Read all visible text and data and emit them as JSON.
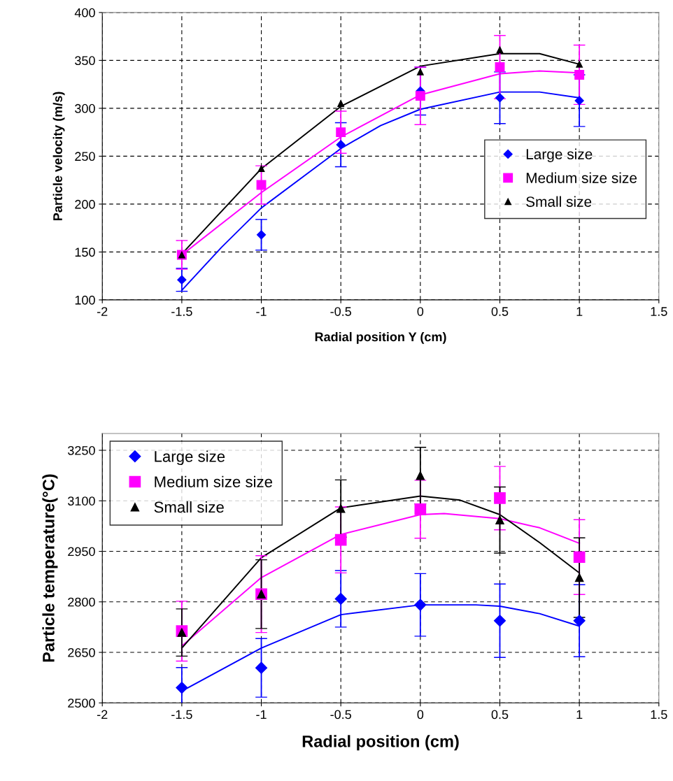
{
  "chart_data": [
    {
      "type": "scatter",
      "xlabel": "Radial position Y (cm)",
      "ylabel": "Particle velocity (m/s)",
      "xlim": [
        -2,
        1.5
      ],
      "xticks": [
        -2,
        -1.5,
        -1,
        -0.5,
        0,
        0.5,
        1,
        1.5
      ],
      "ylim": [
        100,
        400
      ],
      "yticks": [
        100,
        150,
        200,
        250,
        300,
        350,
        400
      ],
      "grid": true,
      "legend": "right",
      "x": [
        -1.5,
        -1,
        -0.5,
        0,
        0.5,
        1
      ],
      "series": [
        {
          "name": "Large size",
          "marker": "diamond",
          "color": "#0000ff",
          "values": [
            121,
            168,
            262,
            318,
            311,
            308
          ],
          "errors": [
            12,
            16,
            23,
            25,
            27,
            27
          ]
        },
        {
          "name": "Medium size size",
          "marker": "square",
          "color": "#ff00ff",
          "values": [
            147,
            220,
            275,
            313,
            343,
            335
          ],
          "errors": [
            15,
            20,
            22,
            30,
            33,
            31
          ]
        },
        {
          "name": "Small size",
          "marker": "triangle",
          "color": "#000000",
          "values": [
            147,
            237,
            305,
            338,
            361,
            346
          ]
        },
        {
          "type": "line",
          "marker": "none",
          "color": "#0000ff",
          "x": [
            -1.5,
            -1.25,
            -1,
            -0.5,
            -0.25,
            0,
            0.5,
            0.75,
            1
          ],
          "values": [
            110,
            155,
            196,
            258,
            282,
            299,
            317,
            317,
            311
          ]
        },
        {
          "type": "line",
          "marker": "none",
          "color": "#ff00ff",
          "x": [
            -1.5,
            -1,
            -0.5,
            0,
            0.5,
            0.75,
            1
          ],
          "values": [
            147,
            212,
            270,
            314,
            336,
            339,
            337
          ]
        },
        {
          "type": "line",
          "marker": "none",
          "color": "#000000",
          "x": [
            -1.5,
            -1,
            -0.5,
            0,
            0.5,
            0.75,
            1
          ],
          "values": [
            148,
            237,
            302,
            344,
            357,
            357,
            346
          ]
        }
      ]
    },
    {
      "type": "scatter",
      "xlabel": "Radial position (cm)",
      "ylabel": "Particle temperature(°C)",
      "xlim": [
        -2,
        1.5
      ],
      "xticks": [
        -2,
        -1.5,
        -1,
        -0.5,
        0,
        0.5,
        1,
        1.5
      ],
      "ylim": [
        2500,
        3300
      ],
      "yticks": [
        2500,
        2650,
        2800,
        2950,
        3100,
        3250
      ],
      "grid": true,
      "legend": "top left",
      "x": [
        -1.5,
        -1,
        -0.5,
        0,
        0.5,
        1
      ],
      "series": [
        {
          "name": "Large size",
          "marker": "diamond",
          "color": "#0000ff",
          "values": [
            2545,
            2604,
            2809,
            2791,
            2744,
            2744
          ],
          "errors": [
            60,
            87,
            84,
            93,
            109,
            107
          ]
        },
        {
          "name": "Medium size size",
          "marker": "square",
          "color": "#ff00ff",
          "values": [
            2713,
            2823,
            2984,
            3075,
            3108,
            2933
          ],
          "errors": [
            89,
            114,
            98,
            86,
            94,
            111
          ]
        },
        {
          "name": "Small size",
          "marker": "triangle",
          "color": "#000000",
          "values": [
            2709,
            2823,
            3077,
            3175,
            3043,
            2872
          ],
          "errors": [
            70,
            102,
            85,
            84,
            98,
            118
          ]
        },
        {
          "type": "line",
          "marker": "none",
          "color": "#0000ff",
          "x": [
            -1.5,
            -1,
            -0.5,
            0,
            0.35,
            0.5,
            0.75,
            1
          ],
          "values": [
            2535,
            2663,
            2762,
            2791,
            2791,
            2787,
            2765,
            2728
          ]
        },
        {
          "type": "line",
          "marker": "none",
          "color": "#ff00ff",
          "x": [
            -1.5,
            -1,
            -0.5,
            0,
            0.15,
            0.5,
            0.75,
            1
          ],
          "values": [
            2669,
            2872,
            3000,
            3059,
            3062,
            3047,
            3020,
            2974
          ]
        },
        {
          "type": "line",
          "marker": "none",
          "color": "#000000",
          "x": [
            -1.5,
            -1,
            -0.5,
            0,
            0.25,
            0.5,
            0.75,
            1
          ],
          "values": [
            2663,
            2931,
            3079,
            3114,
            3102,
            3059,
            2976,
            2886
          ]
        }
      ]
    }
  ]
}
